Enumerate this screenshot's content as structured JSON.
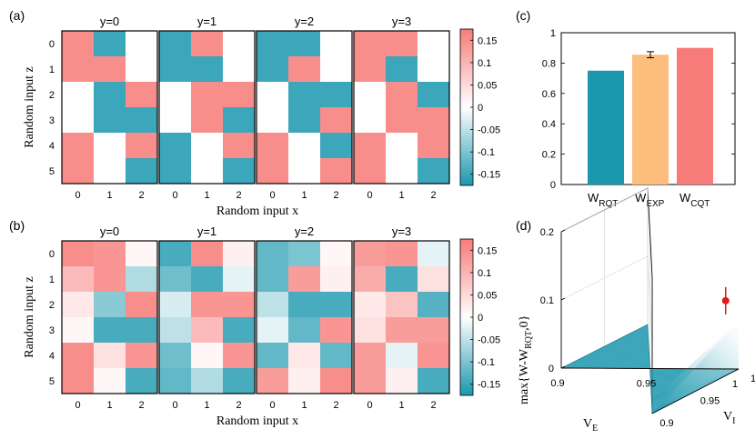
{
  "chart_data": [
    {
      "panel": "(a)",
      "type": "heatmap",
      "subplot_titles": [
        "y=0",
        "y=1",
        "y=2",
        "y=3"
      ],
      "xlabel": "Random input x",
      "ylabel": "Random input z",
      "x_ticks": [
        "0",
        "1",
        "2"
      ],
      "z_ticks": [
        "0",
        "1",
        "2",
        "3",
        "4",
        "5"
      ],
      "values": [
        [
          [
            0.15,
            -0.15,
            0
          ],
          [
            0.15,
            0.15,
            0
          ],
          [
            0,
            -0.15,
            0.15
          ],
          [
            0,
            -0.15,
            -0.15
          ],
          [
            0.15,
            0,
            0.15
          ],
          [
            0.15,
            0,
            -0.15
          ]
        ],
        [
          [
            -0.15,
            0.15,
            0
          ],
          [
            -0.15,
            -0.15,
            0
          ],
          [
            0,
            0.15,
            0.15
          ],
          [
            0,
            0.15,
            -0.15
          ],
          [
            -0.15,
            0,
            0.15
          ],
          [
            -0.15,
            0,
            -0.15
          ]
        ],
        [
          [
            -0.15,
            -0.15,
            0
          ],
          [
            -0.15,
            0.15,
            0
          ],
          [
            0,
            -0.15,
            -0.15
          ],
          [
            0,
            -0.15,
            0.15
          ],
          [
            0.15,
            0,
            -0.15
          ],
          [
            0.15,
            0,
            0.15
          ]
        ],
        [
          [
            0.15,
            0.15,
            0
          ],
          [
            0.15,
            -0.15,
            0
          ],
          [
            0,
            0.15,
            -0.15
          ],
          [
            0,
            0.15,
            0.15
          ],
          [
            0.15,
            0,
            0.15
          ],
          [
            0.15,
            0,
            -0.15
          ]
        ]
      ],
      "colorbar": {
        "ticks": [
          "0.15",
          "0.1",
          "0.05",
          "0",
          "-0.05",
          "-0.1",
          "-0.15"
        ],
        "min": -0.175,
        "max": 0.175
      }
    },
    {
      "panel": "(b)",
      "type": "heatmap",
      "subplot_titles": [
        "y=0",
        "y=1",
        "y=2",
        "y=3"
      ],
      "xlabel": "Random input x",
      "ylabel": "Random input z",
      "x_ticks": [
        "0",
        "1",
        "2"
      ],
      "z_ticks": [
        "0",
        "1",
        "2",
        "3",
        "4",
        "5"
      ],
      "values": [
        [
          [
            0.15,
            0.14,
            0.01
          ],
          [
            0.09,
            0.14,
            -0.06
          ],
          [
            0.03,
            -0.09,
            0.15
          ],
          [
            0.01,
            -0.14,
            -0.14
          ],
          [
            0.15,
            0.04,
            0.14
          ],
          [
            0.15,
            0.01,
            -0.14
          ]
        ],
        [
          [
            -0.14,
            0.15,
            0.02
          ],
          [
            -0.11,
            -0.14,
            -0.02
          ],
          [
            -0.03,
            0.14,
            0.14
          ],
          [
            -0.05,
            0.09,
            -0.14
          ],
          [
            -0.11,
            0.01,
            0.14
          ],
          [
            -0.12,
            -0.06,
            -0.14
          ]
        ],
        [
          [
            -0.12,
            -0.1,
            0.01
          ],
          [
            -0.12,
            0.13,
            0.02
          ],
          [
            -0.05,
            -0.14,
            -0.14
          ],
          [
            -0.02,
            -0.12,
            0.14
          ],
          [
            -0.12,
            0.03,
            -0.12
          ],
          [
            0.13,
            0.02,
            0.15
          ]
        ],
        [
          [
            0.13,
            0.14,
            -0.02
          ],
          [
            0.11,
            -0.14,
            0.04
          ],
          [
            0.03,
            0.08,
            -0.13
          ],
          [
            0.04,
            0.13,
            0.13
          ],
          [
            0.13,
            -0.02,
            0.14
          ],
          [
            0.13,
            0.02,
            -0.14
          ]
        ]
      ],
      "colorbar": {
        "ticks": [
          "0.15",
          "0.1",
          "0.05",
          "0",
          "-0.05",
          "-0.1",
          "-0.15"
        ],
        "min": -0.175,
        "max": 0.175
      }
    },
    {
      "panel": "(c)",
      "type": "bar",
      "categories": [
        "W_RQT",
        "W_EXP",
        "W_CQT"
      ],
      "values": [
        0.75,
        0.855,
        0.9
      ],
      "error": [
        0,
        0.02,
        0
      ],
      "colors": [
        "#1b97ae",
        "#fcbd7d",
        "#f77b78"
      ],
      "ylim": [
        0,
        1
      ],
      "yticks": [
        "0",
        "0.2",
        "0.4",
        "0.6",
        "0.8",
        "1"
      ]
    },
    {
      "panel": "(d)",
      "type": "scatter",
      "zlabel": "max{W-W_RQT,0}",
      "xlabel": "V_E",
      "ylabel": "V_I",
      "zticks": [
        "0",
        "0.1",
        "0.2"
      ],
      "ve_ticks": [
        "0.9",
        "0.95",
        "1"
      ],
      "vi_ticks": [
        "0.9",
        "0.95",
        "1"
      ],
      "zlim": [
        0,
        0.2
      ],
      "point": {
        "VE": 1,
        "VI": 0.985,
        "z": 0.11,
        "err": 0.02
      },
      "surface_color": "#1b97ae",
      "point_color": "#e01818"
    }
  ],
  "text": {
    "tag_a": "(a)",
    "tag_b": "(b)",
    "tag_c": "(c)",
    "tag_d": "(d)",
    "rqt_main": "W",
    "rqt_sub": "RQT",
    "exp_main": "W",
    "exp_sub": "EXP",
    "cqt_main": "W",
    "cqt_sub": "CQT",
    "d_z_pre": "max{W-W",
    "d_z_sub": "RQT",
    "d_z_post": ",0}",
    "d_x_main": "V",
    "d_x_sub": "E",
    "d_y_main": "V",
    "d_y_sub": "I"
  }
}
